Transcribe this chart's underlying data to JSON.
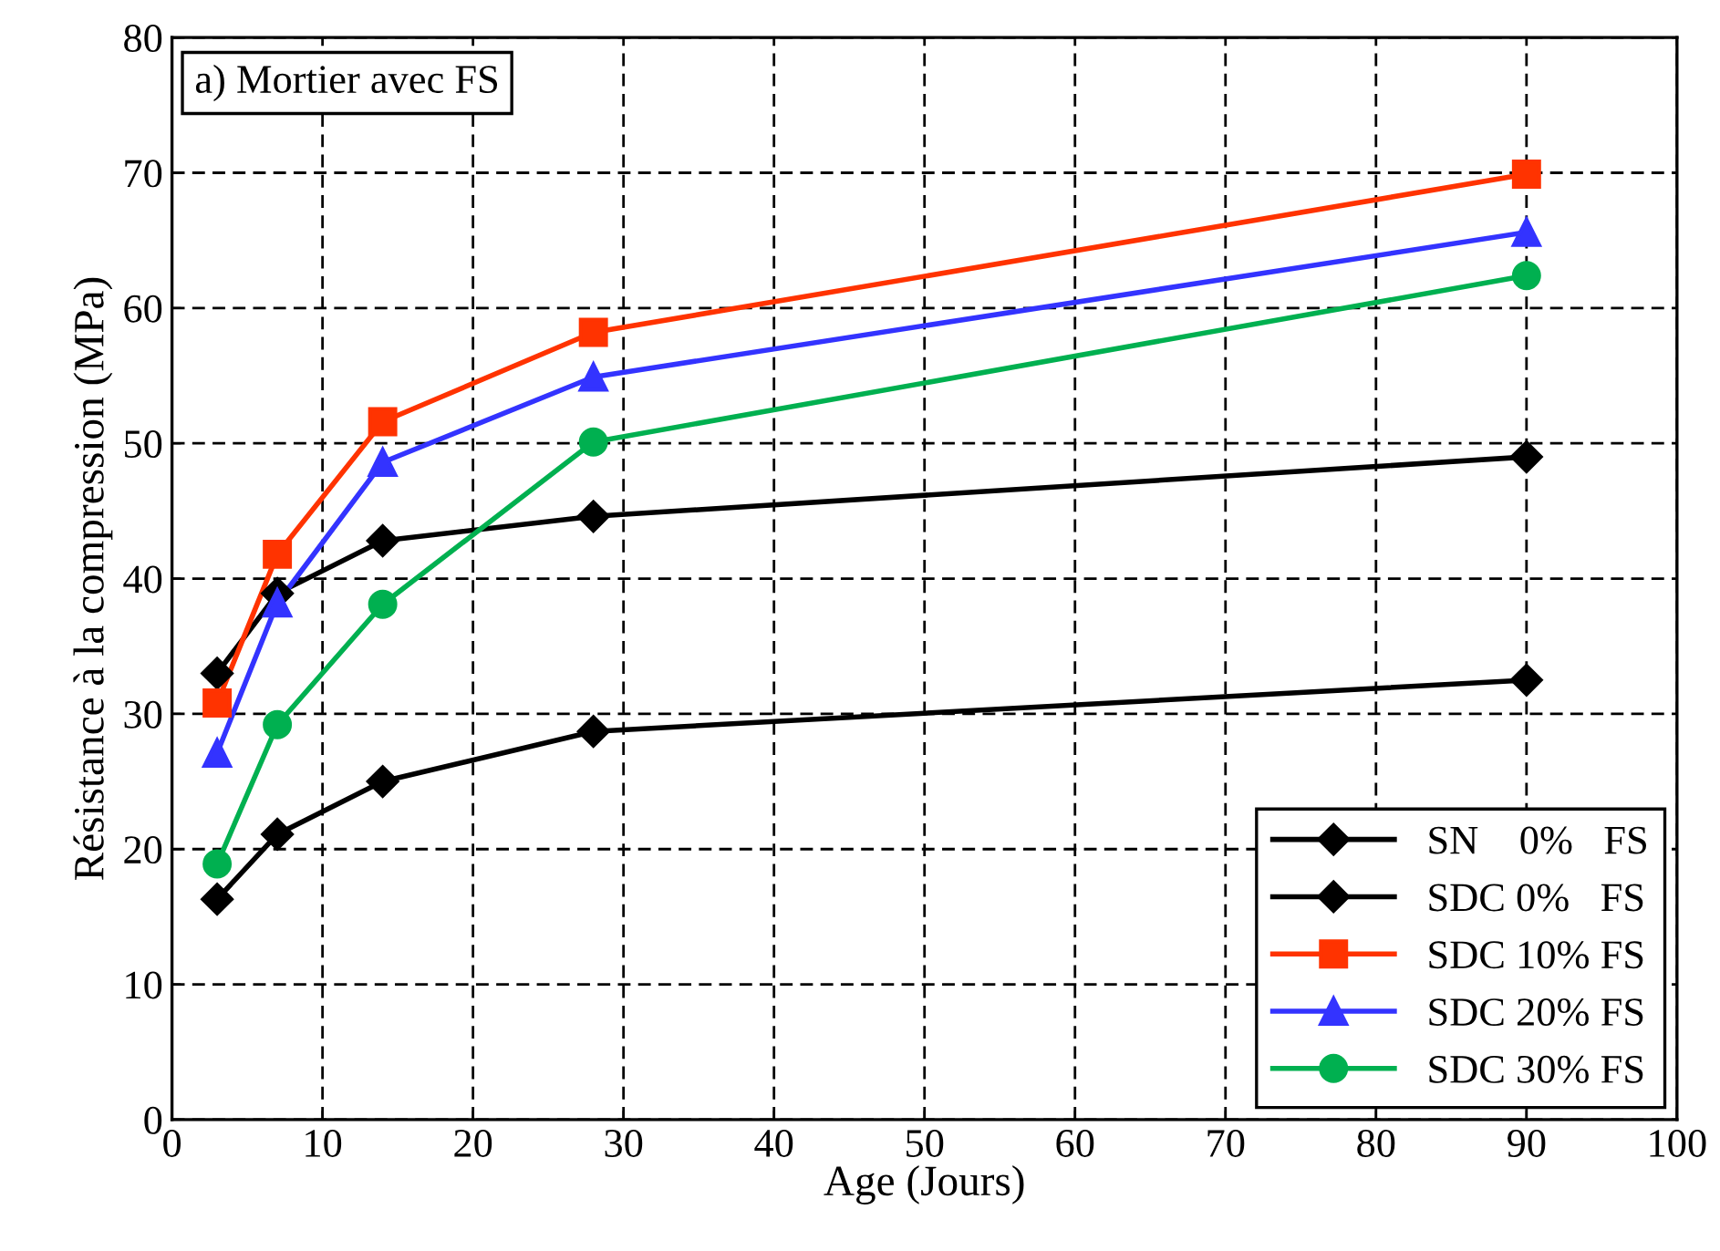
{
  "chart_data": {
    "type": "line",
    "xlabel": "Age (Jours)",
    "ylabel": "Résistance à la compression (MPa)",
    "annotations": [
      "a) Mortier avec FS"
    ],
    "x": [
      3,
      7,
      14,
      28,
      90
    ],
    "series": [
      {
        "name": "SN    0%   FS",
        "color": "#000000",
        "marker": "diamond",
        "values": [
          16.3,
          21.1,
          25.0,
          28.7,
          32.5
        ]
      },
      {
        "name": "SDC 0%   FS",
        "color": "#000000",
        "marker": "diamond",
        "values": [
          33.0,
          38.9,
          42.8,
          44.6,
          49.0
        ]
      },
      {
        "name": "SDC 10% FS",
        "color": "#ff3300",
        "marker": "square",
        "values": [
          30.8,
          41.8,
          51.6,
          58.2,
          69.9
        ]
      },
      {
        "name": "SDC 20% FS",
        "color": "#3333ff",
        "marker": "triangle",
        "values": [
          27.1,
          38.2,
          48.6,
          54.9,
          65.6
        ]
      },
      {
        "name": "SDC 30% FS",
        "color": "#00b050",
        "marker": "circle",
        "values": [
          18.9,
          29.2,
          38.1,
          50.1,
          62.4
        ]
      }
    ],
    "xlim": [
      0,
      100
    ],
    "xticks": [
      0,
      10,
      20,
      30,
      40,
      50,
      60,
      70,
      80,
      90,
      100
    ],
    "ylim": [
      0,
      80
    ],
    "yticks": [
      0,
      10,
      20,
      30,
      40,
      50,
      60,
      70,
      80
    ],
    "grid": true,
    "line_style": "solid",
    "legend": "bottom right"
  }
}
